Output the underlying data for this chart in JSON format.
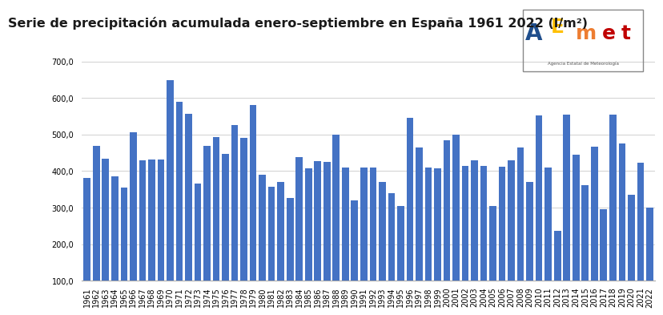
{
  "title": "Serie de precipitación acumulada enero-septiembre en España 1961 2022 (l/m²)",
  "years": [
    1961,
    1962,
    1963,
    1964,
    1965,
    1966,
    1967,
    1968,
    1969,
    1970,
    1971,
    1972,
    1973,
    1974,
    1975,
    1976,
    1977,
    1978,
    1979,
    1980,
    1981,
    1982,
    1983,
    1984,
    1985,
    1986,
    1987,
    1988,
    1989,
    1990,
    1991,
    1992,
    1993,
    1994,
    1995,
    1996,
    1997,
    1998,
    1999,
    2000,
    2001,
    2002,
    2003,
    2004,
    2005,
    2006,
    2007,
    2008,
    2009,
    2010,
    2011,
    2012,
    2013,
    2014,
    2015,
    2016,
    2017,
    2018,
    2019,
    2020,
    2021,
    2022
  ],
  "values": [
    382,
    470,
    435,
    385,
    355,
    507,
    430,
    432,
    432,
    648,
    590,
    557,
    365,
    470,
    493,
    448,
    527,
    490,
    580,
    390,
    357,
    370,
    326,
    438,
    407,
    427,
    425,
    500,
    410,
    320,
    410,
    410,
    370,
    340,
    305,
    545,
    465,
    410,
    408,
    485,
    500,
    415,
    430,
    415,
    305,
    412,
    430,
    465,
    370,
    553,
    410,
    237,
    555,
    445,
    362,
    467,
    295,
    555,
    476,
    335,
    424,
    300
  ],
  "bar_color": "#4472c4",
  "ylim_min": 100,
  "ylim_max": 750,
  "yticks": [
    100,
    200,
    300,
    400,
    500,
    600,
    700
  ],
  "ytick_labels": [
    "100,0",
    "200,0",
    "300,0",
    "400,0",
    "500,0",
    "600,0",
    "700,0"
  ],
  "bg_color": "#ffffff",
  "grid_color": "#d0d0d0",
  "title_fontsize": 11.5,
  "tick_fontsize": 7.0
}
